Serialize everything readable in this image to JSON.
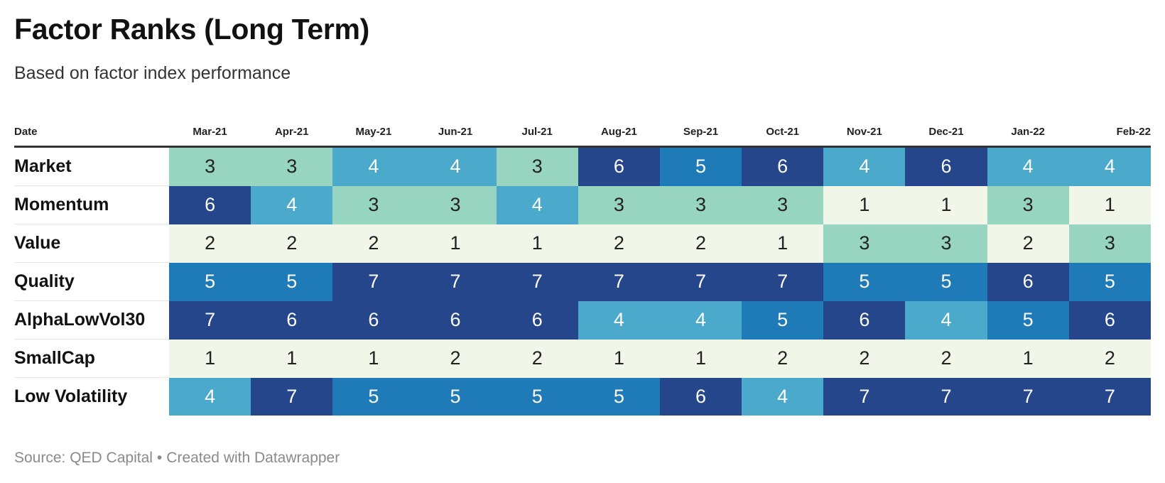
{
  "header": {
    "title": "Factor Ranks (Long Term)",
    "subtitle": "Based on factor index performance"
  },
  "footer": {
    "source_label": "Source: QED Capital",
    "separator": "•",
    "credit": "Created with Datawrapper"
  },
  "chart_data": {
    "type": "heatmap",
    "title": "Factor Ranks (Long Term)",
    "subtitle": "Based on factor index performance",
    "row_header": "Date",
    "columns": [
      "Mar-21",
      "Apr-21",
      "May-21",
      "Jun-21",
      "Jul-21",
      "Aug-21",
      "Sep-21",
      "Oct-21",
      "Nov-21",
      "Dec-21",
      "Jan-22",
      "Feb-22"
    ],
    "rows": [
      {
        "name": "Market",
        "values": [
          3,
          3,
          4,
          4,
          3,
          6,
          5,
          6,
          4,
          6,
          4,
          4
        ]
      },
      {
        "name": "Momentum",
        "values": [
          6,
          4,
          3,
          3,
          4,
          3,
          3,
          3,
          1,
          1,
          3,
          1
        ]
      },
      {
        "name": "Value",
        "values": [
          2,
          2,
          2,
          1,
          1,
          2,
          2,
          1,
          3,
          3,
          2,
          3
        ]
      },
      {
        "name": "Quality",
        "values": [
          5,
          5,
          7,
          7,
          7,
          7,
          7,
          7,
          5,
          5,
          6,
          5
        ]
      },
      {
        "name": "AlphaLowVol30",
        "values": [
          7,
          6,
          6,
          6,
          6,
          4,
          4,
          5,
          6,
          4,
          5,
          6
        ]
      },
      {
        "name": "SmallCap",
        "values": [
          1,
          1,
          1,
          2,
          2,
          1,
          1,
          2,
          2,
          2,
          1,
          2
        ]
      },
      {
        "name": "Low Volatility",
        "values": [
          4,
          7,
          5,
          5,
          5,
          5,
          6,
          4,
          7,
          7,
          7,
          7
        ]
      }
    ],
    "value_range": [
      1,
      7
    ],
    "color_scale": {
      "1": "#f0f7e9",
      "2": "#f0f7e9",
      "3": "#97d5c0",
      "4": "#4ba9cc",
      "5": "#1f7ab8",
      "6": "#26468c",
      "7": "#26468c"
    },
    "text_colors": {
      "light_bg": "#222222",
      "dark_bg": "#ffffff"
    }
  }
}
